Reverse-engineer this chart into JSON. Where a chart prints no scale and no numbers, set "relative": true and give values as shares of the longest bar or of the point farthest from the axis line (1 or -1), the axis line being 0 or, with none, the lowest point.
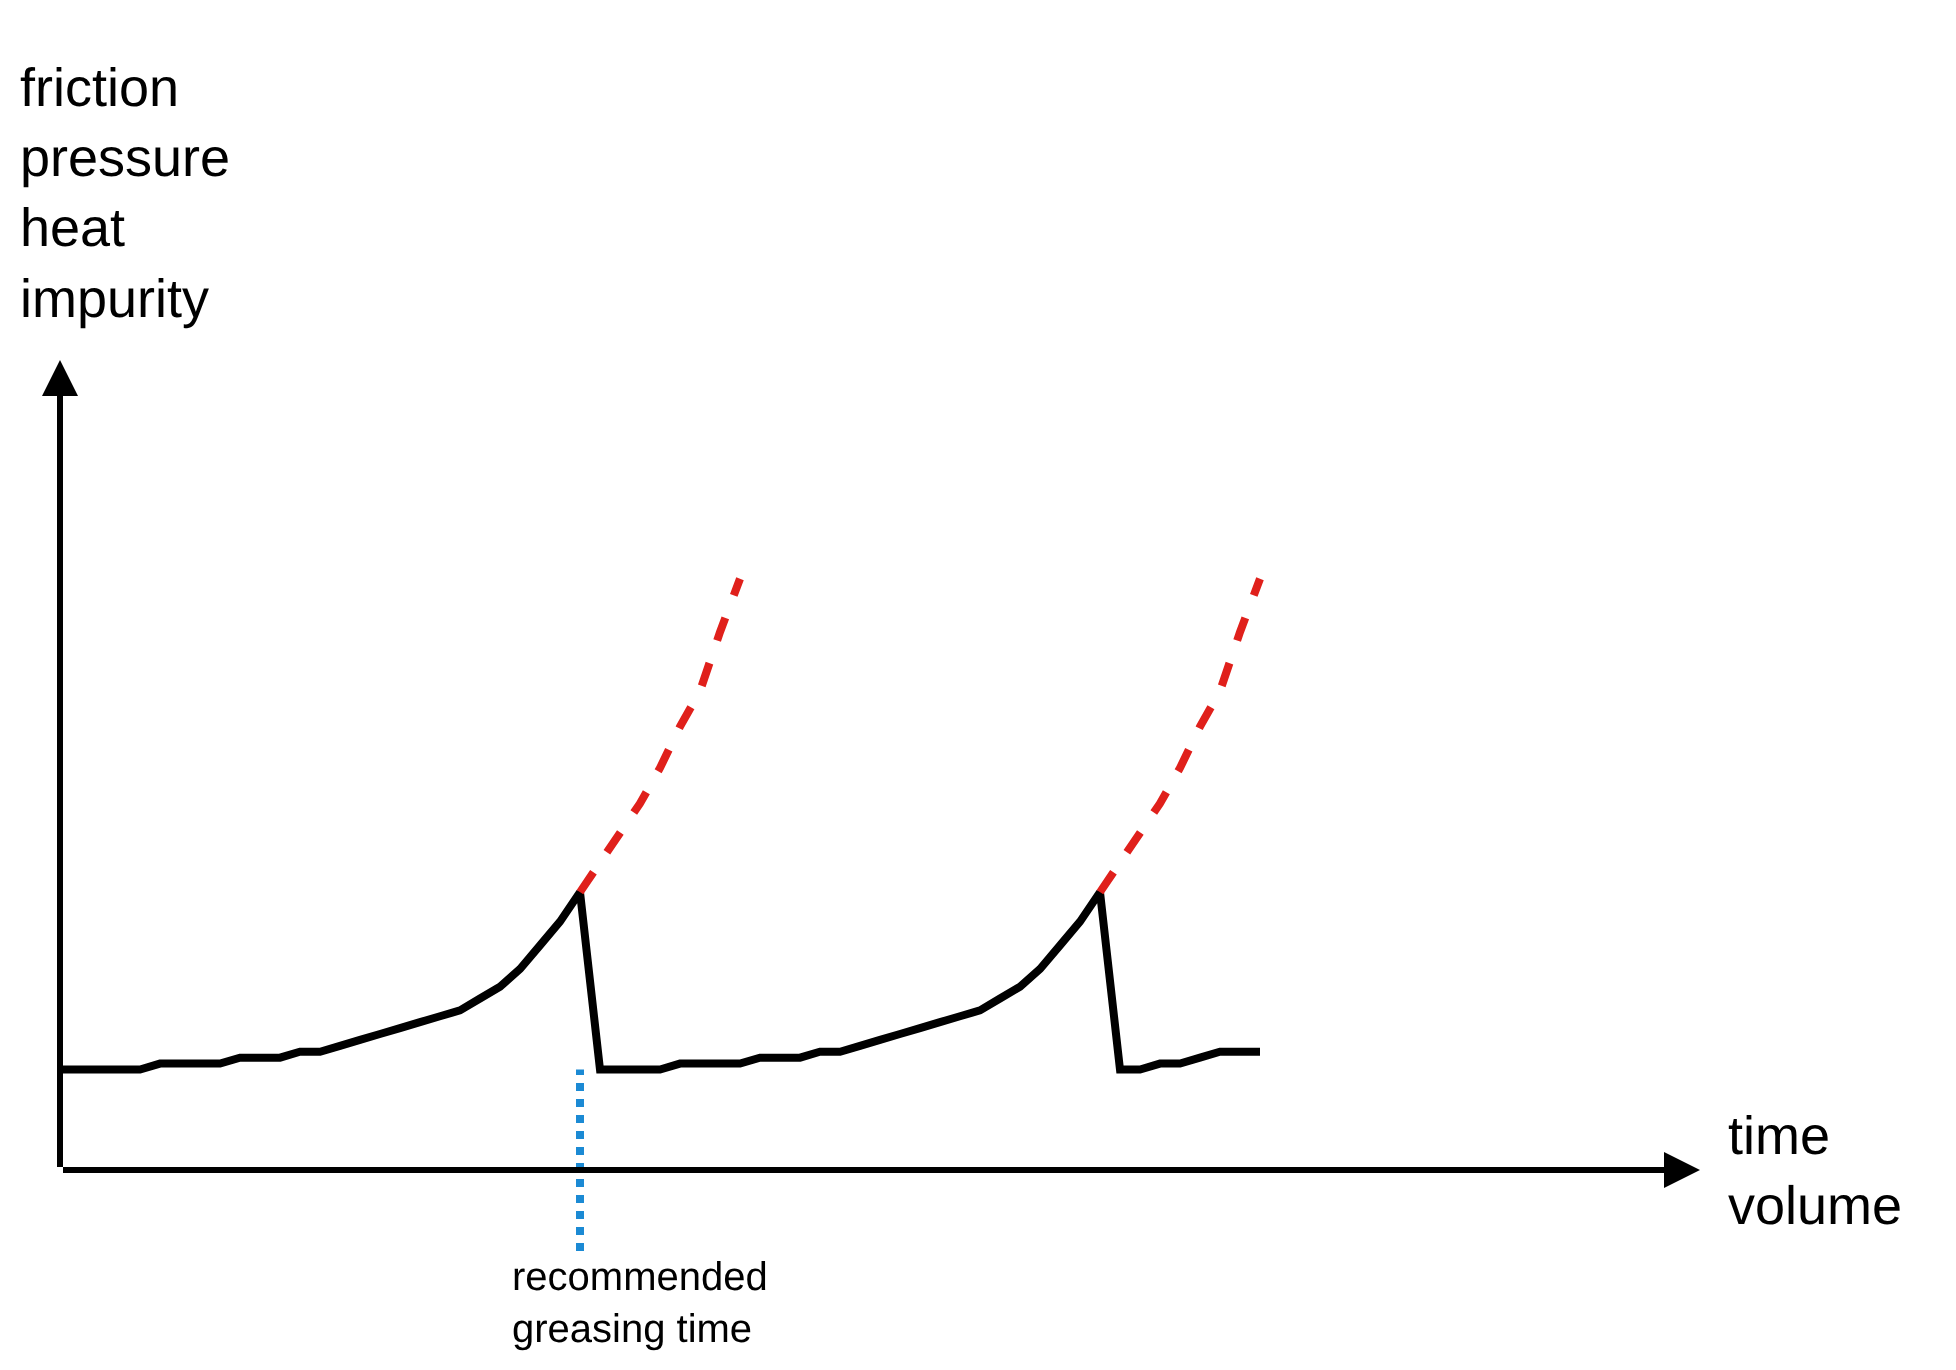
{
  "chart_data": {
    "type": "line",
    "relative": true,
    "ylabel": "friction\npressure\nheat\nimpurity",
    "xlabel": "time\nvolume",
    "categories": [
      null,
      null,
      null,
      null,
      null,
      null,
      null,
      null,
      null,
      null,
      null,
      null,
      null,
      null,
      null,
      null,
      null,
      null,
      null,
      null,
      null,
      null,
      null,
      null,
      null,
      null,
      null,
      null,
      null,
      null,
      null,
      null,
      null,
      null,
      null,
      null,
      null,
      null,
      null,
      null,
      null,
      null,
      null,
      null,
      null,
      null,
      null,
      null,
      null,
      null,
      null,
      null,
      null,
      null,
      null,
      null,
      null,
      null,
      null,
      null,
      null,
      null,
      null,
      null,
      null,
      null,
      null,
      null,
      null,
      null,
      null,
      null,
      null,
      null,
      null,
      null,
      null,
      null,
      null,
      null,
      null,
      null,
      null
    ],
    "series": [
      {
        "color": "#000000",
        "line_style": "solid",
        "values": [
          0.17,
          0.17,
          0.17,
          0.17,
          0.17,
          0.18,
          0.18,
          0.18,
          0.18,
          0.19,
          0.19,
          0.19,
          0.2,
          0.2,
          0.21,
          0.22,
          0.23,
          0.24,
          0.25,
          0.26,
          0.27,
          0.29,
          0.31,
          0.34,
          0.38,
          0.42,
          0.47,
          0.17,
          0.17,
          0.17,
          0.17,
          0.18,
          0.18,
          0.18,
          0.18,
          0.19,
          0.19,
          0.19,
          0.2,
          0.2,
          0.21,
          0.22,
          0.23,
          0.24,
          0.25,
          0.26,
          0.27,
          0.29,
          0.31,
          0.34,
          0.38,
          0.42,
          0.47,
          0.17,
          0.17,
          0.18,
          0.18,
          0.19,
          0.2,
          0.2,
          0.2,
          null,
          null,
          null,
          null,
          null,
          null,
          null,
          null,
          null,
          null,
          null,
          null,
          null,
          null,
          null,
          null,
          null,
          null,
          null,
          null,
          null,
          null
        ]
      },
      {
        "color": "#e0201b",
        "line_style": "dashed",
        "values": [
          null,
          null,
          null,
          null,
          null,
          null,
          null,
          null,
          null,
          null,
          null,
          null,
          null,
          null,
          null,
          null,
          null,
          null,
          null,
          null,
          null,
          null,
          null,
          null,
          null,
          null,
          0.47,
          0.52,
          0.57,
          0.62,
          0.68,
          0.75,
          0.81,
          0.91,
          1.0,
          null,
          null,
          null,
          null,
          null,
          null,
          null,
          null,
          null,
          null,
          null,
          null,
          null,
          null,
          null,
          null,
          null,
          0.47,
          0.52,
          0.57,
          0.62,
          0.68,
          0.75,
          0.81,
          0.91,
          1.0,
          null,
          null,
          null,
          null,
          null,
          null,
          null,
          null,
          null,
          null,
          null,
          null,
          null,
          null,
          null,
          null,
          null,
          null,
          null,
          null,
          null,
          null
        ]
      }
    ],
    "annotations": [
      "recommended\ngreasing time"
    ]
  }
}
